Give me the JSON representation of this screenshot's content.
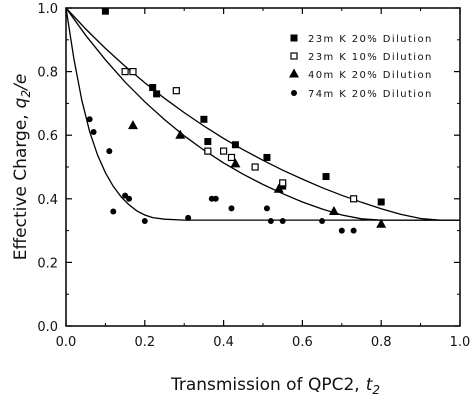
{
  "chart_data": {
    "type": "scatter",
    "xlabel": "Transmission of QPC2,",
    "xlabel_symbol": "t",
    "xlabel_sub": "2",
    "ylabel": "Effective Charge,",
    "ylabel_symbol": "q",
    "ylabel_sub": "2",
    "ylabel_suffix": "/e",
    "xlim": [
      0.0,
      1.0
    ],
    "ylim": [
      0.0,
      1.0
    ],
    "x_ticks": [
      "0.0",
      "0.2",
      "0.4",
      "0.6",
      "0.8",
      "1.0"
    ],
    "y_ticks": [
      "0.0",
      "0.2",
      "0.4",
      "0.6",
      "0.8",
      "1.0"
    ],
    "grid": false,
    "legend_position": "top-right",
    "series": [
      {
        "name": "23m K 20% Dilution",
        "marker": "filled-square",
        "points": [
          [
            0.1,
            0.99
          ],
          [
            0.22,
            0.75
          ],
          [
            0.23,
            0.73
          ],
          [
            0.35,
            0.65
          ],
          [
            0.36,
            0.58
          ],
          [
            0.43,
            0.57
          ],
          [
            0.51,
            0.53
          ],
          [
            0.55,
            0.44
          ],
          [
            0.66,
            0.47
          ],
          [
            0.8,
            0.39
          ]
        ]
      },
      {
        "name": "23m K 10% Dilution",
        "marker": "open-square",
        "points": [
          [
            0.15,
            0.8
          ],
          [
            0.17,
            0.8
          ],
          [
            0.28,
            0.74
          ],
          [
            0.36,
            0.55
          ],
          [
            0.4,
            0.55
          ],
          [
            0.42,
            0.53
          ],
          [
            0.48,
            0.5
          ],
          [
            0.55,
            0.45
          ],
          [
            0.73,
            0.4
          ]
        ]
      },
      {
        "name": "40m K 20% Dilution",
        "marker": "filled-triangle",
        "points": [
          [
            0.17,
            0.63
          ],
          [
            0.29,
            0.6
          ],
          [
            0.43,
            0.51
          ],
          [
            0.54,
            0.43
          ],
          [
            0.68,
            0.36
          ],
          [
            0.8,
            0.32
          ]
        ]
      },
      {
        "name": "74m K 20% Dilution",
        "marker": "filled-circle",
        "points": [
          [
            0.06,
            0.65
          ],
          [
            0.07,
            0.61
          ],
          [
            0.11,
            0.55
          ],
          [
            0.12,
            0.36
          ],
          [
            0.15,
            0.41
          ],
          [
            0.16,
            0.4
          ],
          [
            0.2,
            0.33
          ],
          [
            0.31,
            0.34
          ],
          [
            0.37,
            0.4
          ],
          [
            0.38,
            0.4
          ],
          [
            0.42,
            0.37
          ],
          [
            0.51,
            0.37
          ],
          [
            0.52,
            0.33
          ],
          [
            0.55,
            0.33
          ],
          [
            0.65,
            0.33
          ],
          [
            0.7,
            0.3
          ],
          [
            0.73,
            0.3
          ]
        ]
      }
    ],
    "curves": [
      {
        "points": [
          [
            0.0,
            1.0
          ],
          [
            0.05,
            0.934
          ],
          [
            0.1,
            0.873
          ],
          [
            0.15,
            0.817
          ],
          [
            0.2,
            0.765
          ],
          [
            0.25,
            0.716
          ],
          [
            0.3,
            0.671
          ],
          [
            0.35,
            0.629
          ],
          [
            0.4,
            0.59
          ],
          [
            0.45,
            0.554
          ],
          [
            0.5,
            0.521
          ],
          [
            0.55,
            0.49
          ],
          [
            0.6,
            0.462
          ],
          [
            0.65,
            0.435
          ],
          [
            0.7,
            0.411
          ],
          [
            0.75,
            0.389
          ],
          [
            0.8,
            0.369
          ],
          [
            0.85,
            0.351
          ],
          [
            0.9,
            0.338
          ],
          [
            0.95,
            0.333
          ],
          [
            1.0,
            0.333
          ]
        ]
      },
      {
        "points": [
          [
            0.0,
            1.0
          ],
          [
            0.05,
            0.914
          ],
          [
            0.1,
            0.837
          ],
          [
            0.15,
            0.767
          ],
          [
            0.2,
            0.705
          ],
          [
            0.25,
            0.649
          ],
          [
            0.3,
            0.598
          ],
          [
            0.35,
            0.553
          ],
          [
            0.4,
            0.513
          ],
          [
            0.45,
            0.477
          ],
          [
            0.5,
            0.445
          ],
          [
            0.55,
            0.416
          ],
          [
            0.6,
            0.39
          ],
          [
            0.65,
            0.368
          ],
          [
            0.7,
            0.349
          ],
          [
            0.75,
            0.337
          ],
          [
            0.8,
            0.333
          ],
          [
            1.0,
            0.333
          ]
        ]
      },
      {
        "points": [
          [
            0.0,
            1.0
          ],
          [
            0.02,
            0.84
          ],
          [
            0.04,
            0.71
          ],
          [
            0.06,
            0.612
          ],
          [
            0.08,
            0.538
          ],
          [
            0.1,
            0.482
          ],
          [
            0.12,
            0.439
          ],
          [
            0.14,
            0.406
          ],
          [
            0.16,
            0.381
          ],
          [
            0.18,
            0.362
          ],
          [
            0.2,
            0.349
          ],
          [
            0.22,
            0.341
          ],
          [
            0.25,
            0.336
          ],
          [
            0.3,
            0.333
          ],
          [
            1.0,
            0.333
          ]
        ]
      }
    ]
  }
}
